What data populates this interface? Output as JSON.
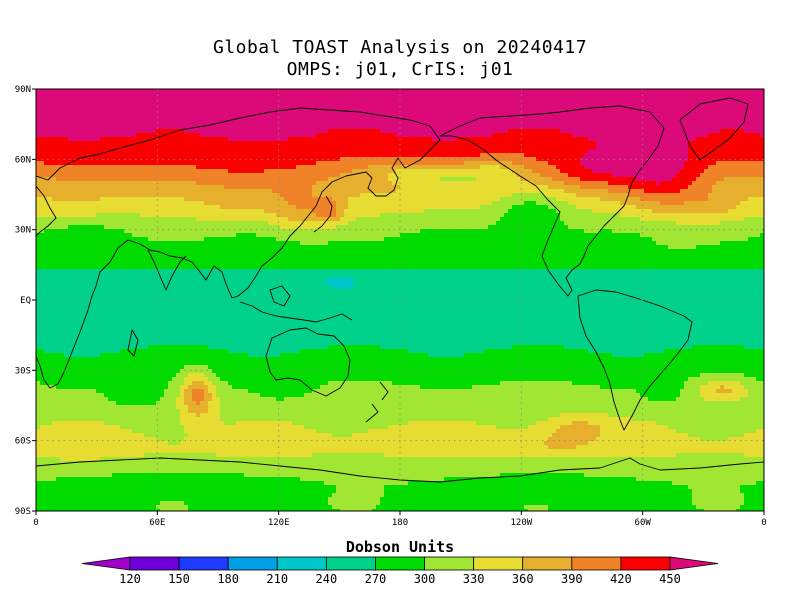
{
  "title": {
    "line1": "Global TOAST Analysis on 20240417",
    "line2": "OMPS: j01, CrIS: j01"
  },
  "map": {
    "projection": "equirectangular",
    "lon_range": [
      0,
      360
    ],
    "lat_range": [
      -90,
      90
    ],
    "lat_ticks": [
      {
        "lat": 90,
        "label": "90N"
      },
      {
        "lat": 60,
        "label": "60N"
      },
      {
        "lat": 30,
        "label": "30N"
      },
      {
        "lat": 0,
        "label": "EQ"
      },
      {
        "lat": -30,
        "label": "30S"
      },
      {
        "lat": -60,
        "label": "60S"
      },
      {
        "lat": -90,
        "label": "90S"
      }
    ],
    "lon_ticks": [
      {
        "lon": 0,
        "label": "0"
      },
      {
        "lon": 60,
        "label": "60E"
      },
      {
        "lon": 120,
        "label": "120E"
      },
      {
        "lon": 180,
        "label": "180"
      },
      {
        "lon": 240,
        "label": "120W"
      },
      {
        "lon": 300,
        "label": "60W"
      },
      {
        "lon": 360,
        "label": "0"
      }
    ],
    "gridlines": "dotted",
    "field": "total ozone (Dobson Units)",
    "zonal_profile": [
      {
        "lat": 90,
        "du": 460
      },
      {
        "lat": 70,
        "du": 450
      },
      {
        "lat": 60,
        "du": 425
      },
      {
        "lat": 50,
        "du": 380
      },
      {
        "lat": 40,
        "du": 340
      },
      {
        "lat": 30,
        "du": 305
      },
      {
        "lat": 20,
        "du": 285
      },
      {
        "lat": 10,
        "du": 262
      },
      {
        "lat": 0,
        "du": 258
      },
      {
        "lat": -10,
        "du": 262
      },
      {
        "lat": -20,
        "du": 268
      },
      {
        "lat": -30,
        "du": 285
      },
      {
        "lat": -40,
        "du": 310
      },
      {
        "lat": -50,
        "du": 325
      },
      {
        "lat": -60,
        "du": 335
      },
      {
        "lat": -65,
        "du": 335
      },
      {
        "lat": -70,
        "du": 315
      },
      {
        "lat": -80,
        "du": 300
      },
      {
        "lat": -90,
        "du": 295
      }
    ],
    "anomalies": [
      {
        "lon": 90,
        "lat": 55,
        "w": 40,
        "h": 10,
        "du": 15
      },
      {
        "lon": 100,
        "lat": 40,
        "w": 20,
        "h": 8,
        "du": 25
      },
      {
        "lon": 130,
        "lat": 38,
        "w": 16,
        "h": 10,
        "du": 50
      },
      {
        "lon": 145,
        "lat": 38,
        "w": 7,
        "h": 5,
        "du": 60
      },
      {
        "lon": 205,
        "lat": 53,
        "w": 22,
        "h": 6,
        "du": -60
      },
      {
        "lon": 180,
        "lat": 55,
        "w": 20,
        "h": 5,
        "du": -30
      },
      {
        "lon": 245,
        "lat": 38,
        "w": 18,
        "h": 10,
        "du": -55
      },
      {
        "lon": 228,
        "lat": 55,
        "w": 14,
        "h": 6,
        "du": -40
      },
      {
        "lon": 278,
        "lat": 55,
        "w": 22,
        "h": 8,
        "du": 45
      },
      {
        "lon": 310,
        "lat": 50,
        "w": 20,
        "h": 14,
        "du": 65
      },
      {
        "lon": 335,
        "lat": 40,
        "w": 14,
        "h": 6,
        "du": 30
      },
      {
        "lon": 20,
        "lat": 40,
        "w": 20,
        "h": 6,
        "du": 15
      },
      {
        "lon": 25,
        "lat": 28,
        "w": 18,
        "h": 5,
        "du": -10
      },
      {
        "lon": 315,
        "lat": 22,
        "w": 16,
        "h": 6,
        "du": 10
      },
      {
        "lon": 240,
        "lat": 22,
        "w": 40,
        "h": 5,
        "du": -6
      },
      {
        "lon": 150,
        "lat": 5,
        "w": 20,
        "h": 4,
        "du": -12
      },
      {
        "lon": 150,
        "lat": 8,
        "w": 8,
        "h": 2,
        "du": -35
      },
      {
        "lon": 50,
        "lat": -40,
        "w": 14,
        "h": 7,
        "du": -35
      },
      {
        "lon": 122,
        "lat": -38,
        "w": 14,
        "h": 6,
        "du": -20
      },
      {
        "lon": 310,
        "lat": -40,
        "w": 10,
        "h": 5,
        "du": -25
      },
      {
        "lon": 80,
        "lat": -40,
        "w": 8,
        "h": 10,
        "du": 90
      },
      {
        "lon": 340,
        "lat": -38,
        "w": 12,
        "h": 5,
        "du": 55
      },
      {
        "lon": 268,
        "lat": -55,
        "w": 15,
        "h": 5,
        "du": 45
      },
      {
        "lon": 255,
        "lat": -62,
        "w": 22,
        "h": 5,
        "du": 30
      },
      {
        "lon": 190,
        "lat": -60,
        "w": 30,
        "h": 5,
        "du": 15
      },
      {
        "lon": 20,
        "lat": -63,
        "w": 30,
        "h": 5,
        "du": 10
      },
      {
        "lon": 70,
        "lat": -78,
        "w": 60,
        "h": 6,
        "du": -15
      },
      {
        "lon": 250,
        "lat": -78,
        "w": 50,
        "h": 7,
        "du": -12
      }
    ]
  },
  "colorbar": {
    "title": "Dobson Units",
    "colors": [
      "#a000c8",
      "#6e00dc",
      "#1e3cff",
      "#00a0e6",
      "#00c8c8",
      "#00d28c",
      "#00dc00",
      "#a0e632",
      "#e6dc32",
      "#e6af2d",
      "#f08228",
      "#fa0000",
      "#dc0a78"
    ],
    "bounds": [
      120,
      150,
      180,
      210,
      240,
      270,
      300,
      330,
      360,
      390,
      420,
      450
    ],
    "labels": [
      "120",
      "150",
      "180",
      "210",
      "240",
      "270",
      "300",
      "330",
      "360",
      "390",
      "420",
      "450"
    ]
  }
}
